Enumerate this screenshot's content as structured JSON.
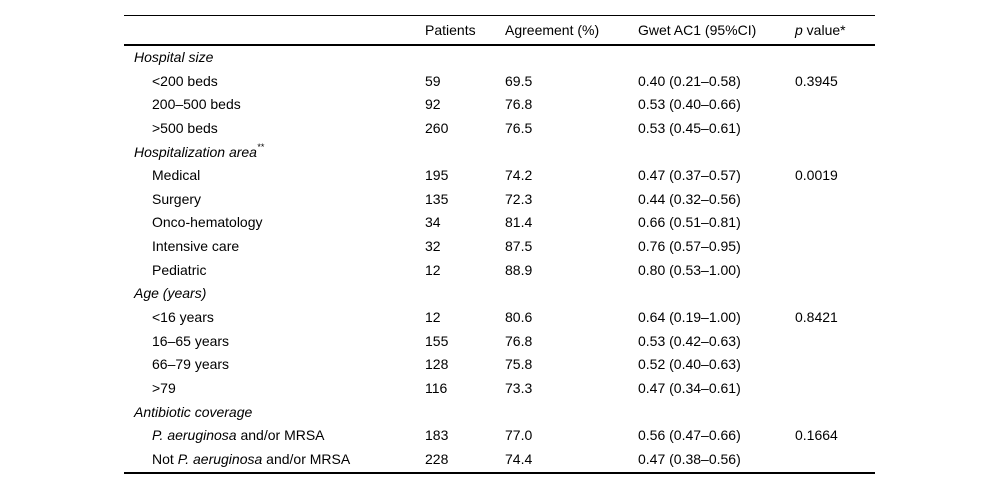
{
  "table": {
    "headers": {
      "patients": "Patients",
      "agreement": "Agreement (%)",
      "gwet": "Gwet AC1 (95%CI)",
      "p_italic": "p",
      "p_rest": " value*"
    },
    "sections": [
      {
        "header": "Hospital size",
        "sup": "",
        "rows": [
          {
            "label": [
              {
                "t": "<200 beds",
                "i": false
              }
            ],
            "patients": "59",
            "agreement": "69.5",
            "gwet": "0.40 (0.21–0.58)",
            "p": "0.3945"
          },
          {
            "label": [
              {
                "t": "200–500 beds",
                "i": false
              }
            ],
            "patients": "92",
            "agreement": "76.8",
            "gwet": "0.53 (0.40–0.66)",
            "p": ""
          },
          {
            "label": [
              {
                "t": ">500 beds",
                "i": false
              }
            ],
            "patients": "260",
            "agreement": "76.5",
            "gwet": "0.53 (0.45–0.61)",
            "p": ""
          }
        ]
      },
      {
        "header": "Hospitalization area",
        "sup": "**",
        "rows": [
          {
            "label": [
              {
                "t": "Medical",
                "i": false
              }
            ],
            "patients": "195",
            "agreement": "74.2",
            "gwet": "0.47 (0.37–0.57)",
            "p": "0.0019"
          },
          {
            "label": [
              {
                "t": "Surgery",
                "i": false
              }
            ],
            "patients": "135",
            "agreement": "72.3",
            "gwet": "0.44 (0.32–0.56)",
            "p": ""
          },
          {
            "label": [
              {
                "t": "Onco-hematology",
                "i": false
              }
            ],
            "patients": "34",
            "agreement": "81.4",
            "gwet": "0.66 (0.51–0.81)",
            "p": ""
          },
          {
            "label": [
              {
                "t": "Intensive care",
                "i": false
              }
            ],
            "patients": "32",
            "agreement": "87.5",
            "gwet": "0.76 (0.57–0.95)",
            "p": ""
          },
          {
            "label": [
              {
                "t": "Pediatric",
                "i": false
              }
            ],
            "patients": "12",
            "agreement": "88.9",
            "gwet": "0.80 (0.53–1.00)",
            "p": ""
          }
        ]
      },
      {
        "header": "Age (years)",
        "sup": "",
        "rows": [
          {
            "label": [
              {
                "t": "<16 years",
                "i": false
              }
            ],
            "patients": "12",
            "agreement": "80.6",
            "gwet": "0.64 (0.19–1.00)",
            "p": "0.8421"
          },
          {
            "label": [
              {
                "t": "16–65 years",
                "i": false
              }
            ],
            "patients": "155",
            "agreement": "76.8",
            "gwet": "0.53 (0.42–0.63)",
            "p": ""
          },
          {
            "label": [
              {
                "t": "66–79 years",
                "i": false
              }
            ],
            "patients": "128",
            "agreement": "75.8",
            "gwet": "0.52 (0.40–0.63)",
            "p": ""
          },
          {
            "label": [
              {
                "t": ">79",
                "i": false
              }
            ],
            "patients": "116",
            "agreement": "73.3",
            "gwet": "0.47 (0.34–0.61)",
            "p": ""
          }
        ]
      },
      {
        "header": "Antibiotic coverage",
        "sup": "",
        "rows": [
          {
            "label": [
              {
                "t": "P. aeruginosa",
                "i": true
              },
              {
                "t": " and/or MRSA",
                "i": false
              }
            ],
            "patients": "183",
            "agreement": "77.0",
            "gwet": "0.56 (0.47–0.66)",
            "p": "0.1664"
          },
          {
            "label": [
              {
                "t": "Not ",
                "i": false
              },
              {
                "t": "P. aeruginosa",
                "i": true
              },
              {
                "t": " and/or MRSA",
                "i": false
              }
            ],
            "patients": "228",
            "agreement": "74.4",
            "gwet": "0.47 (0.38–0.56)",
            "p": ""
          }
        ]
      }
    ]
  }
}
